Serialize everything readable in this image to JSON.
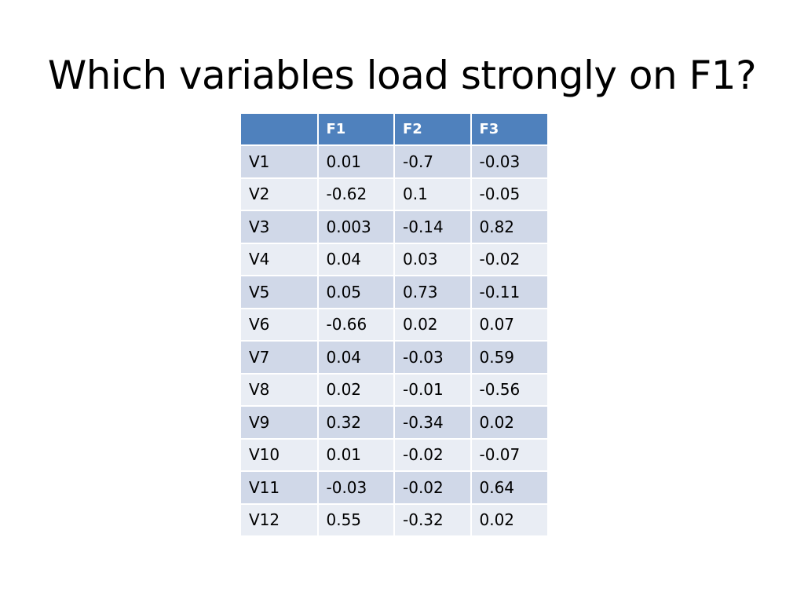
{
  "slide": {
    "title": "Which variables load strongly on F1?"
  },
  "table": {
    "headers": [
      "",
      "F1",
      "F2",
      "F3"
    ],
    "rows": [
      [
        "V1",
        "0.01",
        "-0.7",
        "-0.03"
      ],
      [
        "V2",
        "-0.62",
        "0.1",
        "-0.05"
      ],
      [
        "V3",
        "0.003",
        "-0.14",
        "0.82"
      ],
      [
        "V4",
        "0.04",
        "0.03",
        "-0.02"
      ],
      [
        "V5",
        "0.05",
        "0.73",
        "-0.11"
      ],
      [
        "V6",
        "-0.66",
        "0.02",
        "0.07"
      ],
      [
        "V7",
        "0.04",
        "-0.03",
        "0.59"
      ],
      [
        "V8",
        "0.02",
        "-0.01",
        "-0.56"
      ],
      [
        "V9",
        "0.32",
        "-0.34",
        "0.02"
      ],
      [
        "V10",
        "0.01",
        "-0.02",
        "-0.07"
      ],
      [
        "V11",
        "-0.03",
        "-0.02",
        "0.64"
      ],
      [
        "V12",
        "0.55",
        "-0.32",
        "0.02"
      ]
    ]
  },
  "colors": {
    "header_bg": "#4f81bd",
    "row_odd_bg": "#d0d8e8",
    "row_even_bg": "#e9edf4"
  }
}
